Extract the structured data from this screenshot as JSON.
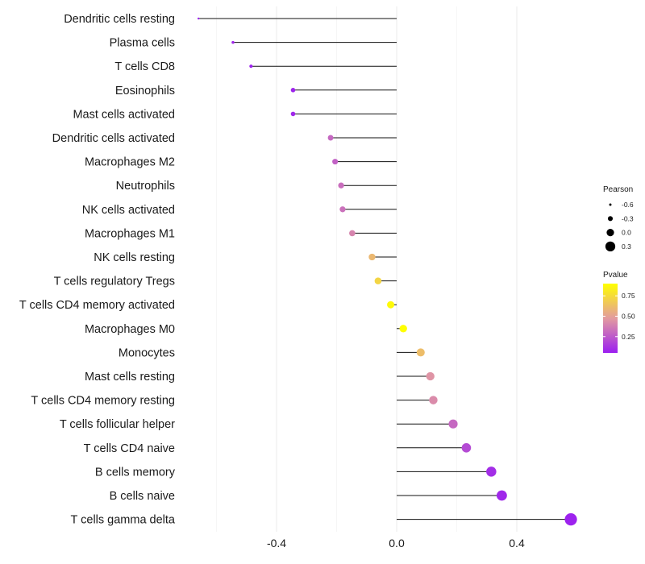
{
  "chart_data": {
    "type": "lollipop",
    "title": "",
    "xlabel": "",
    "ylabel": "",
    "xlim": [
      -0.66,
      0.58
    ],
    "x_ticks": [
      -0.4,
      0.0,
      0.4
    ],
    "x_tick_labels": [
      "-0.4",
      "0.0",
      "0.4"
    ],
    "grid": true,
    "categories": [
      "Dendritic cells resting",
      "Plasma cells",
      "T cells CD8",
      "Eosinophils",
      "Mast cells activated",
      "Dendritic cells activated",
      "Macrophages M2",
      "Neutrophils",
      "NK cells activated",
      "Macrophages M1",
      "NK cells resting",
      "T cells regulatory  Tregs ",
      "T cells CD4 memory activated",
      "Macrophages M0",
      "Monocytes",
      "Mast cells resting",
      "T cells CD4 memory resting",
      "T cells follicular helper",
      "T cells CD4 naive",
      "B cells memory",
      "B cells naive",
      "T cells gamma delta"
    ],
    "values": [
      -0.66,
      -0.545,
      -0.485,
      -0.345,
      -0.345,
      -0.22,
      -0.205,
      -0.185,
      -0.18,
      -0.148,
      -0.082,
      -0.062,
      -0.02,
      0.022,
      0.08,
      0.112,
      0.122,
      0.188,
      0.232,
      0.315,
      0.35,
      0.58
    ],
    "pvalues": [
      0.05,
      0.08,
      0.06,
      0.07,
      0.08,
      0.3,
      0.28,
      0.32,
      0.33,
      0.4,
      0.6,
      0.72,
      0.88,
      0.9,
      0.62,
      0.45,
      0.42,
      0.3,
      0.2,
      0.1,
      0.08,
      0.06
    ],
    "legend": {
      "position": "right",
      "size_title": "Pearson",
      "size_values": [
        -0.6,
        -0.3,
        0.0,
        0.3
      ],
      "size_labels": [
        "-0.6",
        "-0.3",
        "0.0",
        "0.3"
      ],
      "color_title": "Pvalue",
      "color_ticks": [
        0.75,
        0.5,
        0.25
      ],
      "color_tick_labels": [
        "0.75",
        "0.50",
        "0.25"
      ],
      "color_range": [
        0.05,
        0.9
      ],
      "low_color": "#9b1ff0",
      "mid_color": "#e39ba0",
      "high_color": "#ffff00"
    }
  }
}
